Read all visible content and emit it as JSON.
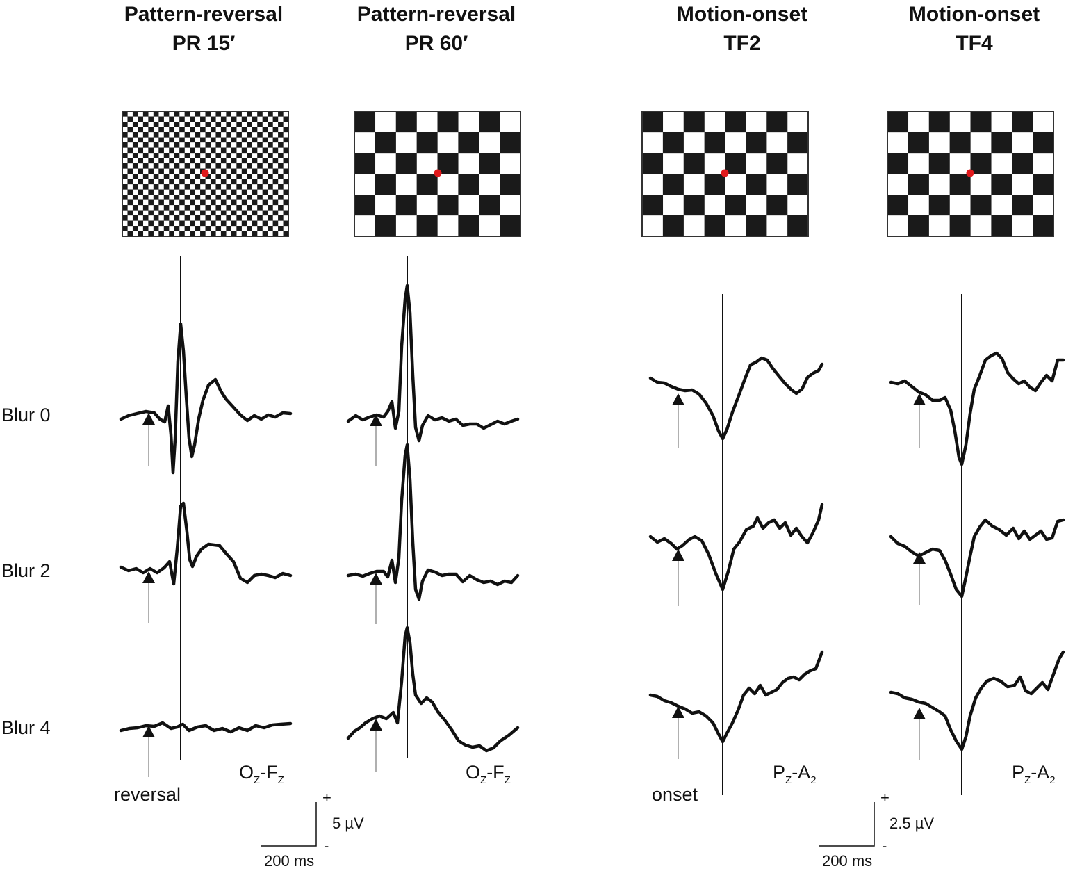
{
  "columns": [
    {
      "title_line1": "Pattern-reversal",
      "title_line2": "PR 15′",
      "channel_main": "O",
      "channel_sub1": "Z",
      "channel_mid": "-F",
      "channel_sub2": "Z",
      "event_label": "reversal"
    },
    {
      "title_line1": "Pattern-reversal",
      "title_line2": "PR 60′",
      "channel_main": "O",
      "channel_sub1": "Z",
      "channel_mid": "-F",
      "channel_sub2": "Z",
      "event_label": ""
    },
    {
      "title_line1": "Motion-onset",
      "title_line2": "TF2",
      "channel_main": "P",
      "channel_sub1": "Z",
      "channel_mid": "-A",
      "channel_sub2": "2",
      "event_label": "onset"
    },
    {
      "title_line1": "Motion-onset",
      "title_line2": "TF4",
      "channel_main": "P",
      "channel_sub1": "Z",
      "channel_mid": "-A",
      "channel_sub2": "2",
      "event_label": ""
    }
  ],
  "rows": [
    "Blur 0",
    "Blur 2",
    "Blur 4"
  ],
  "scale_bars": [
    {
      "amplitude": "5 µV",
      "time": "200 ms",
      "plus": "+",
      "minus": "-"
    },
    {
      "amplitude": "2.5 µV",
      "time": "200 ms",
      "plus": "+",
      "minus": "-"
    }
  ],
  "colors": {
    "trace": "#111111",
    "fixation": "#e0191c",
    "arrow_stem": "#b0b0b0"
  }
}
